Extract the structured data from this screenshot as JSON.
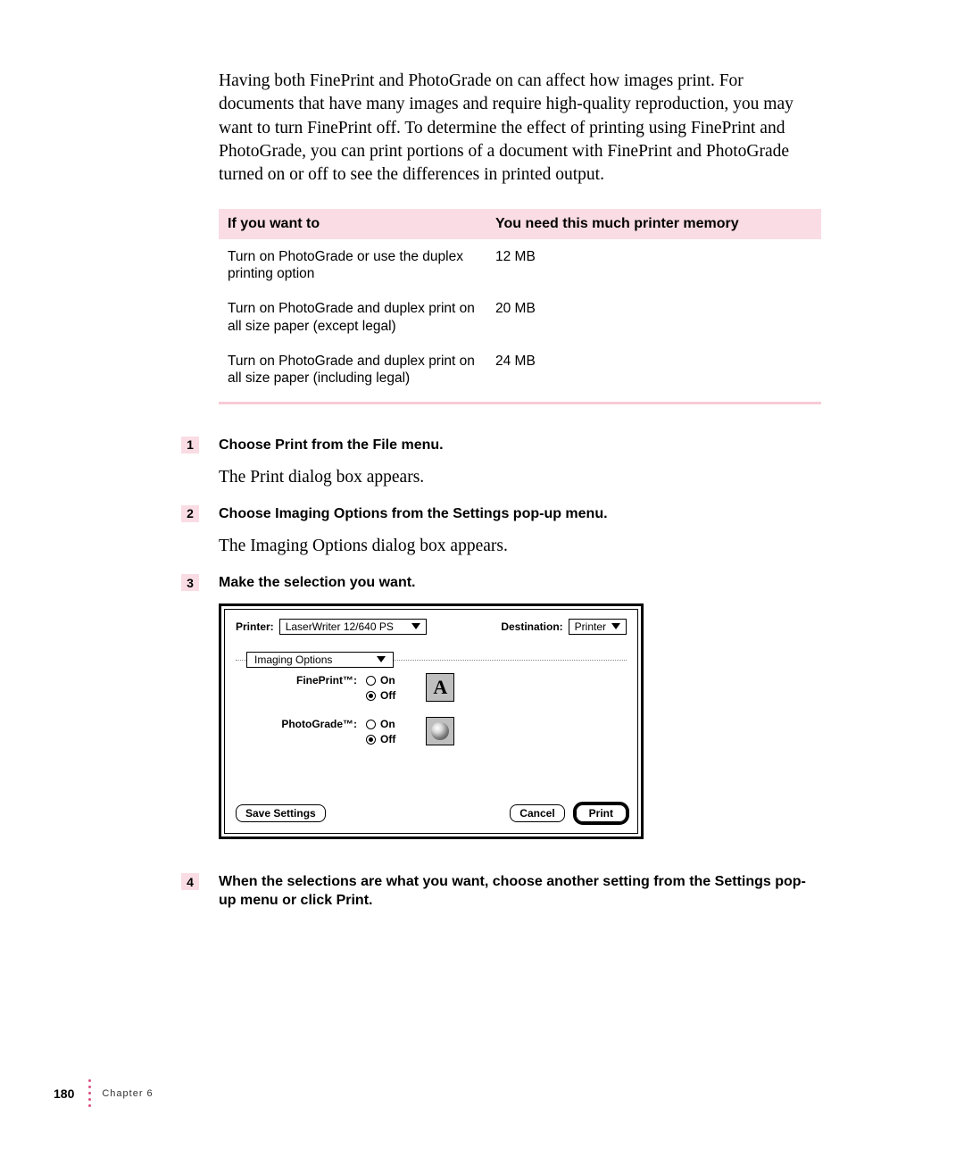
{
  "intro": "Having both FinePrint and PhotoGrade on can affect how images print. For documents that have many images and require high-quality reproduction, you may want to turn FinePrint off. To determine the effect of printing using FinePrint and PhotoGrade, you can print portions of a document with FinePrint and PhotoGrade turned on or off to see the differences in printed output.",
  "table": {
    "header_col1": "If you want to",
    "header_col2": "You need this much printer memory",
    "rows": [
      {
        "c1": "Turn on PhotoGrade or use the duplex printing option",
        "c2": "12 MB"
      },
      {
        "c1": "Turn on PhotoGrade and duplex print on all size paper (except legal)",
        "c2": "20 MB"
      },
      {
        "c1": "Turn on PhotoGrade and duplex print on all size paper (including legal)",
        "c2": "24 MB"
      }
    ]
  },
  "steps": {
    "s1": {
      "num": "1",
      "title": "Choose Print from the File menu.",
      "body": "The Print dialog box appears."
    },
    "s2": {
      "num": "2",
      "title": "Choose Imaging Options from the Settings pop-up menu.",
      "body": "The Imaging Options dialog box appears."
    },
    "s3": {
      "num": "3",
      "title": "Make the selection you want."
    },
    "s4": {
      "num": "4",
      "title": "When the selections are what you want, choose another setting from the Settings pop-up menu or click Print."
    }
  },
  "dialog": {
    "printer_label": "Printer:",
    "printer_value": "LaserWriter 12/640 PS",
    "destination_label": "Destination:",
    "destination_value": "Printer",
    "panel_title": "Imaging Options",
    "fineprint_label": "FinePrint™:",
    "photograde_label": "PhotoGrade™:",
    "on_label": "On",
    "off_label": "Off",
    "preview_letter": "A",
    "save_btn": "Save Settings",
    "cancel_btn": "Cancel",
    "print_btn": "Print"
  },
  "footer": {
    "page": "180",
    "chapter": "Chapter 6"
  },
  "colors": {
    "pink_bg": "#fadce4",
    "pink_divider": "#f7cad6",
    "dot": "#d94f82"
  }
}
